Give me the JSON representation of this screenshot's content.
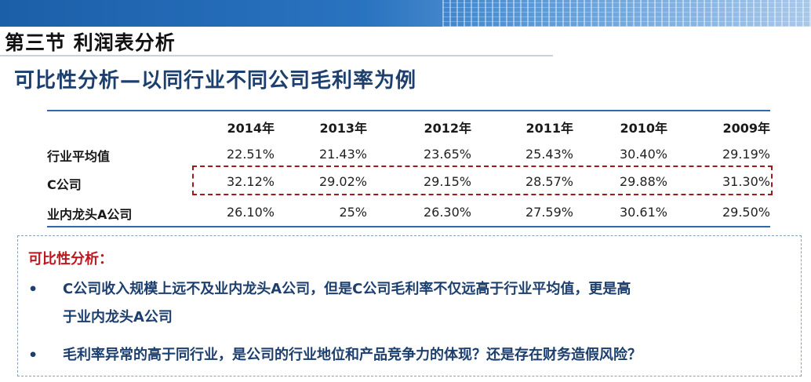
{
  "header": {
    "section_title": "第三节 利润表分析",
    "subtitle": "可比性分析—以同行业不同公司毛利率为例"
  },
  "table": {
    "years": [
      "2014年",
      "2013年",
      "2012年",
      "2011年",
      "2010年",
      "2009年"
    ],
    "rows": [
      {
        "label": "行业平均值",
        "values": [
          "22.51%",
          "21.43%",
          "23.65%",
          "25.43%",
          "30.40%",
          "29.19%"
        ]
      },
      {
        "label": "C公司",
        "values": [
          "32.12%",
          "29.02%",
          "29.15%",
          "28.57%",
          "29.88%",
          "31.30%"
        ]
      },
      {
        "label": "业内龙头A公司",
        "values": [
          "26.10%",
          "25%",
          "26.30%",
          "27.59%",
          "30.61%",
          "29.50%"
        ]
      }
    ]
  },
  "notes": {
    "title": "可比性分析：",
    "bullet_symbol": "•",
    "items": [
      {
        "line1": "C公司收入规模上远不及业内龙头A公司，但是C公司毛利率不仅远高于行业平均值，更是高",
        "line2": "于业内龙头A公司"
      },
      {
        "line1": "毛利率异常的高于同行业，是公司的行业地位和产品竞争力的体现？还是存在财务造假风险？"
      }
    ]
  },
  "colors": {
    "accent_blue": "#1c3f6e",
    "highlight_red": "#a0191e",
    "note_red": "#c0161d"
  }
}
